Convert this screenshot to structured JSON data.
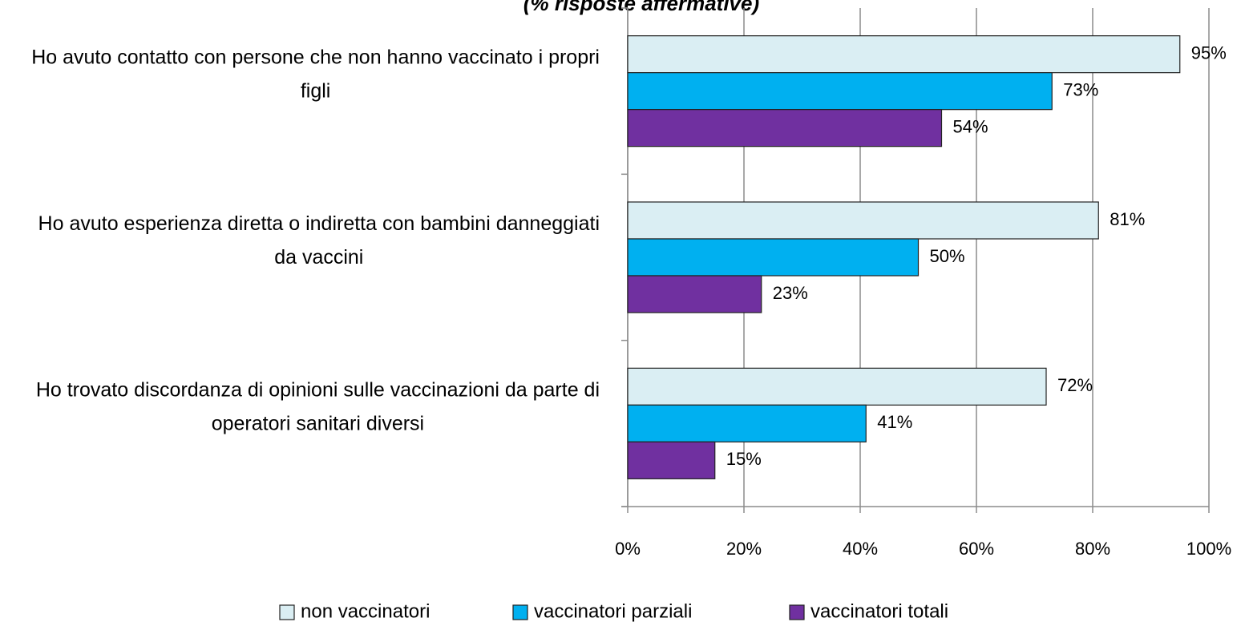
{
  "chart_data": {
    "type": "bar",
    "orientation": "horizontal",
    "title": "(% risposte affermative)",
    "categories": [
      "Ho avuto contatto con persone che non hanno vaccinato i propri figli",
      "Ho avuto esperienza diretta o indiretta con bambini danneggiati da vaccini",
      "Ho trovato discordanza di opinioni sulle vaccinazioni da parte di operatori sanitari diversi"
    ],
    "series": [
      {
        "name": "non vaccinatori",
        "color": "#daeef3",
        "values": [
          95,
          81,
          72
        ],
        "value_labels": [
          "95%",
          "81%",
          "72%"
        ]
      },
      {
        "name": "vaccinatori parziali",
        "color": "#00b0f0",
        "values": [
          73,
          50,
          41
        ],
        "value_labels": [
          "73%",
          "50%",
          "41%"
        ]
      },
      {
        "name": "vaccinatori totali",
        "color": "#7030a0",
        "values": [
          54,
          23,
          15
        ],
        "value_labels": [
          "54%",
          "23%",
          "15%"
        ]
      }
    ],
    "xlim": [
      0,
      100
    ],
    "xticks": [
      {
        "value": 0,
        "label": "0%"
      },
      {
        "value": 20,
        "label": "20%"
      },
      {
        "value": 40,
        "label": "40%"
      },
      {
        "value": 60,
        "label": "60%"
      },
      {
        "value": 80,
        "label": "80%"
      },
      {
        "value": 100,
        "label": "100%"
      }
    ],
    "grid": true,
    "legend": "bottom"
  }
}
